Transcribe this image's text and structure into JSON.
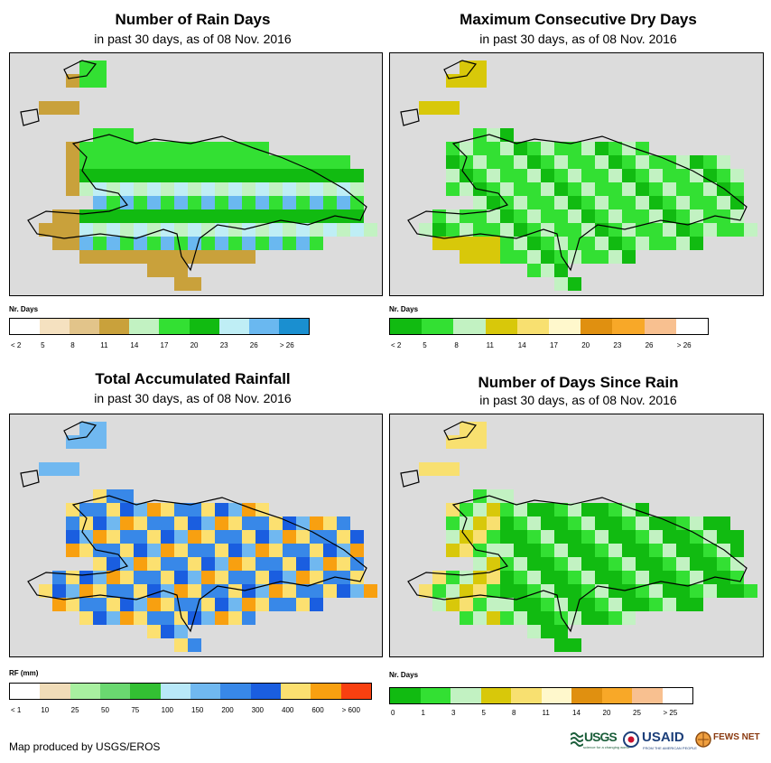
{
  "panels": {
    "rain_days": {
      "title": "Number of Rain Days",
      "subtitle": "in past 30 days, as of 08 Nov. 2016",
      "legend_label": "Nr. Days",
      "legend_ticks": [
        "< 2",
        "5",
        "8",
        "11",
        "14",
        "17",
        "20",
        "23",
        "26",
        "> 26"
      ],
      "legend_colors": [
        "#ffffff",
        "#f5e1c0",
        "#e2c48a",
        "#c9a13b",
        "#c2f2c2",
        "#33e033",
        "#11bb11",
        "#bfeef5",
        "#6ab8f0",
        "#1a8fd0"
      ]
    },
    "dry_days": {
      "title": "Maximum Consecutive Dry Days",
      "subtitle": "in past 30 days, as of 08 Nov. 2016",
      "legend_label": "Nr. Days",
      "legend_ticks": [
        "< 2",
        "5",
        "8",
        "11",
        "14",
        "17",
        "20",
        "23",
        "26",
        "> 26"
      ],
      "legend_colors": [
        "#11bb11",
        "#33e033",
        "#c2f2c2",
        "#d8c80a",
        "#f8e070",
        "#fff8cc",
        "#e09010",
        "#f8a828",
        "#f8c090",
        "#ffffff"
      ]
    },
    "rainfall": {
      "title": "Total Accumulated Rainfall",
      "subtitle": "in past 30 days, as of 08 Nov. 2016",
      "legend_label": "RF (mm)",
      "legend_ticks": [
        "< 1",
        "10",
        "25",
        "50",
        "75",
        "100",
        "150",
        "200",
        "300",
        "400",
        "600",
        "> 600"
      ],
      "legend_colors": [
        "#ffffff",
        "#f0dcb8",
        "#a8f0a0",
        "#6ad870",
        "#33c033",
        "#b8e8f8",
        "#70b8f0",
        "#3888e8",
        "#1a5ee0",
        "#fce070",
        "#f8a010",
        "#f84010"
      ]
    },
    "days_since": {
      "title": "Number of Days Since Rain",
      "subtitle": "in past 30 days, as of 08 Nov. 2016",
      "legend_label": "Nr. Days",
      "legend_ticks": [
        "0",
        "1",
        "3",
        "5",
        "8",
        "11",
        "14",
        "20",
        "25",
        "> 25"
      ],
      "legend_colors": [
        "#11bb11",
        "#33e033",
        "#c2f2c2",
        "#d8c80a",
        "#f8e070",
        "#fff8cc",
        "#e09010",
        "#f8a828",
        "#f8c090",
        "#ffffff"
      ]
    }
  },
  "credit": "Map produced by USGS/EROS",
  "logos": {
    "usgs": "USGS",
    "usgs_tagline": "science for a changing world",
    "usaid": "USAID",
    "usaid_tagline": "FROM THE AMERICAN PEOPLE",
    "fews": "FEWS NET"
  },
  "colors": {
    "map_bg": "#dcdcdc",
    "outline": "#000000"
  }
}
